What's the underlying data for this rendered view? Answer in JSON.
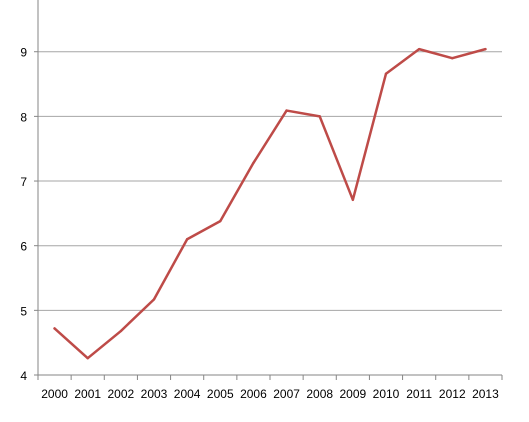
{
  "chart_data": {
    "type": "line",
    "title": "",
    "xlabel": "",
    "ylabel": "",
    "categories": [
      "2000",
      "2001",
      "2002",
      "2003",
      "2004",
      "2005",
      "2006",
      "2007",
      "2008",
      "2009",
      "2010",
      "2011",
      "2012",
      "2013"
    ],
    "ylim": [
      4,
      9.8
    ],
    "yticks": [
      4,
      5,
      6,
      7,
      8,
      9
    ],
    "grid": true,
    "legend": "none",
    "series": [
      {
        "color": "#be4b48",
        "values": [
          4.72,
          4.26,
          4.68,
          5.17,
          6.1,
          6.38,
          7.28,
          8.09,
          8.0,
          6.71,
          8.66,
          9.04,
          8.9,
          9.04
        ]
      }
    ]
  }
}
